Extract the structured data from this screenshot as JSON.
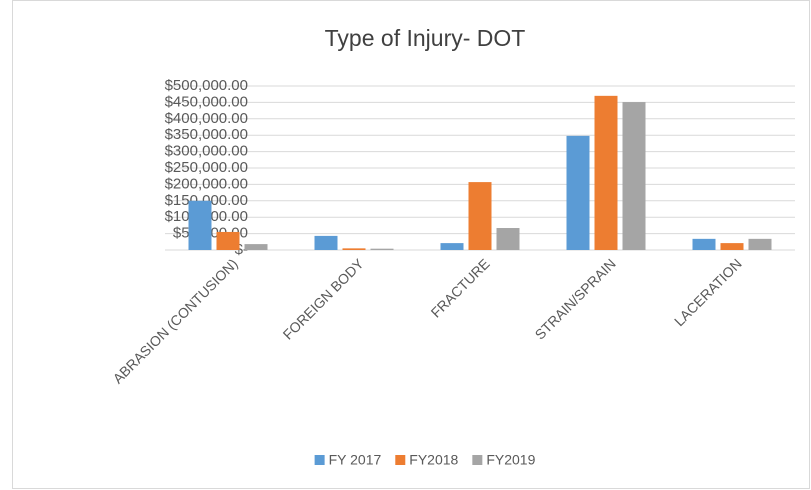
{
  "chart_data": {
    "type": "bar",
    "title": "Type of Injury- DOT",
    "categories": [
      "ABRASION (CONTUSION)",
      "FOREIGN BODY",
      "FRACTURE",
      "STRAIN/SPRAIN",
      "LACERATION"
    ],
    "series": [
      {
        "name": "FY 2017",
        "color": "#5b9bd5",
        "values": [
          150000,
          43000,
          21000,
          348000,
          34000
        ]
      },
      {
        "name": "FY2018",
        "color": "#ed7d31",
        "values": [
          55000,
          5000,
          207000,
          470000,
          21000
        ]
      },
      {
        "name": "FY2019",
        "color": "#a5a5a5",
        "values": [
          18000,
          4000,
          67000,
          451000,
          34000
        ]
      }
    ],
    "ylim": [
      0,
      500000
    ],
    "yticks": [
      {
        "value": 0,
        "label": "$-"
      },
      {
        "value": 50000,
        "label": "$50,000.00"
      },
      {
        "value": 100000,
        "label": "$100,000.00"
      },
      {
        "value": 150000,
        "label": "$150,000.00"
      },
      {
        "value": 200000,
        "label": "$200,000.00"
      },
      {
        "value": 250000,
        "label": "$250,000.00"
      },
      {
        "value": 300000,
        "label": "$300,000.00"
      },
      {
        "value": 350000,
        "label": "$350,000.00"
      },
      {
        "value": 400000,
        "label": "$400,000.00"
      },
      {
        "value": 450000,
        "label": "$450,000.00"
      },
      {
        "value": 500000,
        "label": "$500,000.00"
      }
    ],
    "grid": true,
    "legend": "bottom"
  }
}
